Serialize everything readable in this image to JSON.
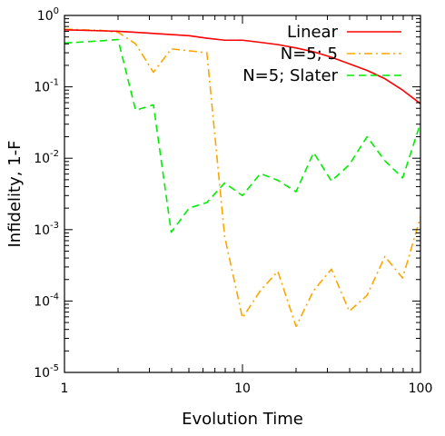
{
  "chart_data": {
    "type": "line",
    "xlabel": "Evolution Time",
    "ylabel": "Infidelity, 1-F",
    "xscale": "log",
    "yscale": "log",
    "xlim": [
      1,
      100
    ],
    "ylim": [
      1e-05,
      1
    ],
    "x_ticks": [
      {
        "value": 1,
        "label": "1"
      },
      {
        "value": 10,
        "label": "10"
      },
      {
        "value": 100,
        "label": "100"
      }
    ],
    "y_ticks": [
      {
        "value": 1,
        "base": "10",
        "exp": "0"
      },
      {
        "value": 0.1,
        "base": "10",
        "exp": "-1"
      },
      {
        "value": 0.01,
        "base": "10",
        "exp": "-2"
      },
      {
        "value": 0.001,
        "base": "10",
        "exp": "-3"
      },
      {
        "value": 0.0001,
        "base": "10",
        "exp": "-4"
      },
      {
        "value": 1e-05,
        "base": "10",
        "exp": "-5"
      }
    ],
    "grid": false,
    "legend_position": "top-right",
    "series": [
      {
        "name": "Linear",
        "color": "#ff0000",
        "style": "solid",
        "x": [
          1,
          1.58,
          2,
          2.51,
          3.16,
          3.98,
          5.01,
          6.31,
          7.94,
          10,
          12.6,
          15.8,
          20,
          25.1,
          31.6,
          39.8,
          50.1,
          63.1,
          79.4,
          100
        ],
        "y": [
          0.63,
          0.61,
          0.6,
          0.58,
          0.56,
          0.54,
          0.52,
          0.48,
          0.45,
          0.45,
          0.42,
          0.39,
          0.35,
          0.31,
          0.26,
          0.21,
          0.17,
          0.13,
          0.09,
          0.058
        ]
      },
      {
        "name": "N=5; 5",
        "color": "#ffa500",
        "style": "dash-dot",
        "x": [
          1,
          1.58,
          2,
          2.51,
          3.16,
          3.98,
          5.01,
          6.31,
          7.94,
          10,
          12.6,
          15.8,
          20,
          25.1,
          31.6,
          39.8,
          50.1,
          63.1,
          79.4,
          100
        ],
        "y": [
          0.64,
          0.62,
          0.58,
          0.4,
          0.16,
          0.34,
          0.32,
          0.3,
          0.0008,
          5.8e-05,
          0.00014,
          0.00026,
          4.4e-05,
          0.00014,
          0.00028,
          7.2e-05,
          0.00012,
          0.00042,
          0.00021,
          0.0015
        ]
      },
      {
        "name": "N=5; Slater",
        "color": "#00ee00",
        "style": "dashed",
        "x": [
          1,
          1.58,
          2,
          2.51,
          3.16,
          3.98,
          5.01,
          6.31,
          7.94,
          10,
          12.6,
          15.8,
          20,
          25.1,
          31.6,
          39.8,
          50.1,
          63.1,
          79.4,
          100
        ],
        "y": [
          0.41,
          0.44,
          0.46,
          0.047,
          0.056,
          0.00092,
          0.002,
          0.0024,
          0.0045,
          0.003,
          0.0061,
          0.0049,
          0.0034,
          0.012,
          0.0048,
          0.0081,
          0.02,
          0.0092,
          0.0053,
          0.031
        ]
      }
    ]
  }
}
